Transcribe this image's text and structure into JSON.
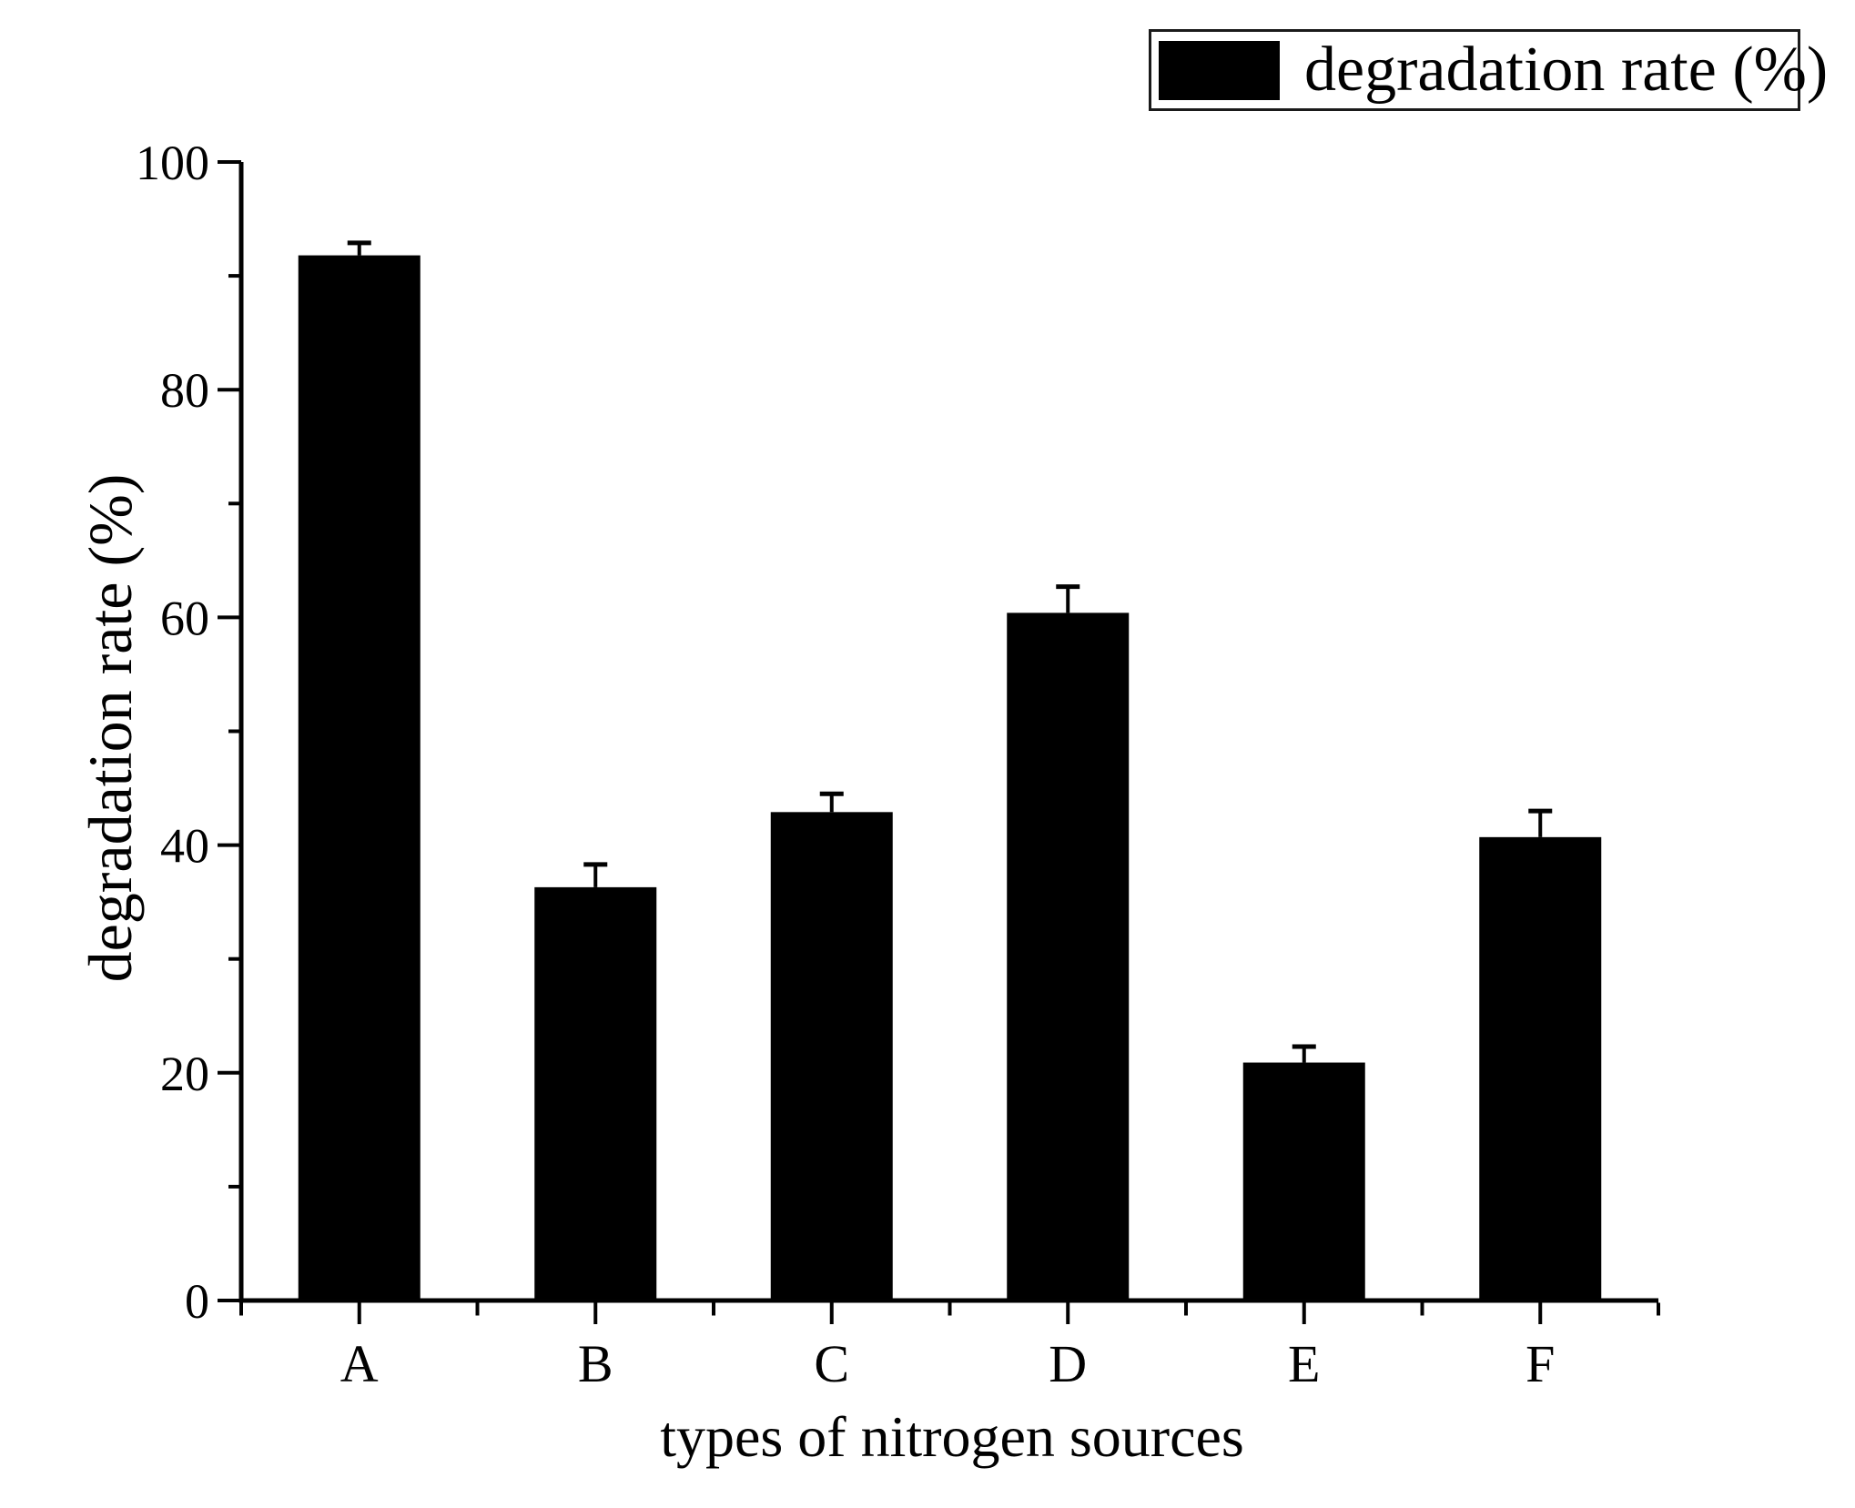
{
  "figure": {
    "background": "#ffffff",
    "text_color": "#010101"
  },
  "chart_data": {
    "type": "bar",
    "title": "",
    "xlabel": "types of nitrogen sources",
    "ylabel": "degradation rate (%)",
    "legend_label": "degradation rate (%)",
    "legend_position": "top-right",
    "categories": [
      "A",
      "B",
      "C",
      "D",
      "E",
      "F"
    ],
    "series": [
      {
        "name": "degradation rate (%)",
        "values": [
          91.8,
          36.3,
          42.9,
          60.4,
          20.9,
          40.7
        ],
        "errors_plus": [
          1.1,
          2.0,
          1.6,
          2.3,
          1.4,
          2.3
        ],
        "color": "#000000"
      }
    ],
    "ylim": [
      0,
      100
    ],
    "yticks_major": [
      0,
      20,
      40,
      60,
      80,
      100
    ],
    "yticks_minor": [
      10,
      30,
      50,
      70,
      90
    ],
    "grid": false,
    "error_bars": "upper-only"
  }
}
